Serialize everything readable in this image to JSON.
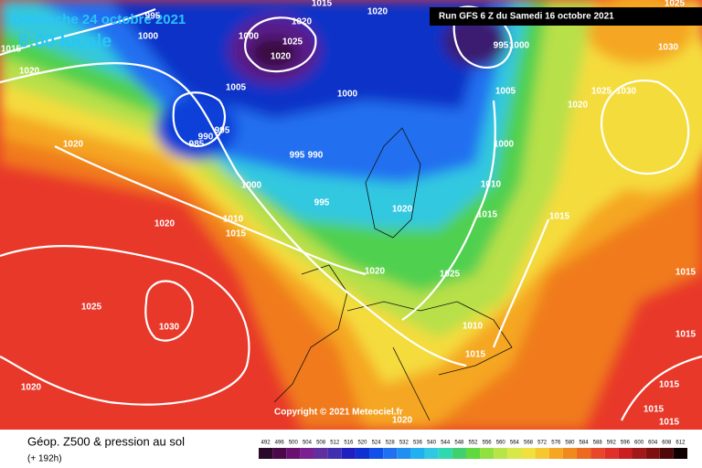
{
  "header": {
    "date": "Dimanche 24 octobre 2021",
    "time": "8:00 locale",
    "run": "Run GFS 6 Z du Samedi 16 octobre 2021"
  },
  "copyright": "Copyright © 2021 Meteociel.fr",
  "legend": {
    "title": "Géop. Z500 & pression au sol",
    "lead": "(+ 192h)"
  },
  "scale": {
    "values": [
      492,
      496,
      500,
      504,
      508,
      512,
      516,
      520,
      524,
      528,
      532,
      536,
      540,
      544,
      548,
      552,
      556,
      560,
      564,
      568,
      572,
      576,
      580,
      584,
      588,
      592,
      596,
      600,
      604,
      608,
      612
    ],
    "colors": [
      "#2a0a2a",
      "#4a0a4a",
      "#6a1070",
      "#7a2090",
      "#6030a0",
      "#4030b0",
      "#2020c0",
      "#1030d0",
      "#1050e8",
      "#2070f0",
      "#2090f0",
      "#20b0f0",
      "#30c8e0",
      "#30d8b0",
      "#40d070",
      "#60d840",
      "#90e040",
      "#b8e448",
      "#d8e848",
      "#f0e040",
      "#f5c830",
      "#f5a623",
      "#f08a1e",
      "#ec6a20",
      "#e8482a",
      "#e0302a",
      "#c82020",
      "#a01818",
      "#801010",
      "#500808",
      "#100000"
    ]
  },
  "isobar_labels": [
    1015,
    1020,
    995,
    1000,
    1020,
    1015,
    1020,
    1000,
    1025,
    1020,
    1005,
    1000,
    990,
    995,
    985,
    995,
    990,
    1020,
    1000,
    995,
    1020,
    1010,
    1015,
    1020,
    1020,
    1025,
    1010,
    1015,
    995,
    1000,
    1005,
    1000,
    1010,
    1015,
    1015,
    1025,
    1030,
    1020,
    1030,
    1025,
    1015,
    1015,
    1015,
    1015,
    1015,
    1025,
    1030,
    1020,
    1020
  ]
}
